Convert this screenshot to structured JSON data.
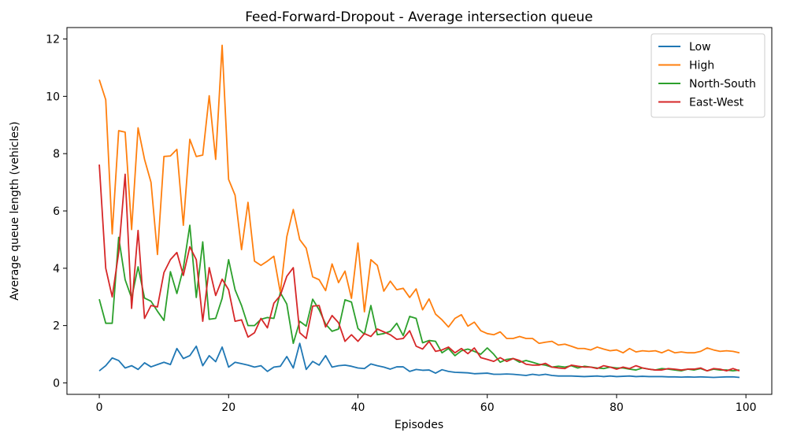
{
  "chart_data": {
    "type": "line",
    "title": "Feed-Forward-Dropout - Average intersection queue",
    "xlabel": "Episodes",
    "ylabel": "Average queue length (vehicles)",
    "xlim": [
      -5,
      104
    ],
    "ylim": [
      -0.4,
      12.4
    ],
    "xticks": [
      0,
      20,
      40,
      60,
      80,
      100
    ],
    "yticks": [
      0,
      2,
      4,
      6,
      8,
      10,
      12
    ],
    "grid": false,
    "legend_position": "top-right",
    "x": [
      0,
      1,
      2,
      3,
      4,
      5,
      6,
      7,
      8,
      9,
      10,
      11,
      12,
      13,
      14,
      15,
      16,
      17,
      18,
      19,
      20,
      21,
      22,
      23,
      24,
      25,
      26,
      27,
      28,
      29,
      30,
      31,
      32,
      33,
      34,
      35,
      36,
      37,
      38,
      39,
      40,
      41,
      42,
      43,
      44,
      45,
      46,
      47,
      48,
      49,
      50,
      51,
      52,
      53,
      54,
      55,
      56,
      57,
      58,
      59,
      60,
      61,
      62,
      63,
      64,
      65,
      66,
      67,
      68,
      69,
      70,
      71,
      72,
      73,
      74,
      75,
      76,
      77,
      78,
      79,
      80,
      81,
      82,
      83,
      84,
      85,
      86,
      87,
      88,
      89,
      90,
      91,
      92,
      93,
      94,
      95,
      96,
      97,
      98,
      99
    ],
    "series": [
      {
        "name": "Low",
        "color": "#1f77b4",
        "values": [
          0.42,
          0.6,
          0.87,
          0.78,
          0.52,
          0.6,
          0.47,
          0.7,
          0.56,
          0.64,
          0.72,
          0.64,
          1.2,
          0.85,
          0.95,
          1.28,
          0.6,
          0.95,
          0.74,
          1.25,
          0.55,
          0.72,
          0.67,
          0.62,
          0.55,
          0.6,
          0.4,
          0.55,
          0.58,
          0.92,
          0.52,
          1.38,
          0.47,
          0.75,
          0.62,
          0.95,
          0.55,
          0.6,
          0.62,
          0.58,
          0.52,
          0.5,
          0.66,
          0.6,
          0.55,
          0.48,
          0.56,
          0.56,
          0.4,
          0.47,
          0.44,
          0.45,
          0.34,
          0.46,
          0.4,
          0.37,
          0.36,
          0.35,
          0.32,
          0.33,
          0.34,
          0.3,
          0.3,
          0.31,
          0.3,
          0.28,
          0.26,
          0.3,
          0.27,
          0.3,
          0.26,
          0.24,
          0.24,
          0.24,
          0.23,
          0.22,
          0.23,
          0.24,
          0.22,
          0.24,
          0.22,
          0.23,
          0.24,
          0.22,
          0.23,
          0.22,
          0.22,
          0.22,
          0.21,
          0.21,
          0.2,
          0.21,
          0.2,
          0.21,
          0.2,
          0.19,
          0.2,
          0.21,
          0.21,
          0.19
        ]
      },
      {
        "name": "High",
        "color": "#ff7f0e",
        "values": [
          10.58,
          9.88,
          5.2,
          8.8,
          8.75,
          5.35,
          8.9,
          7.8,
          7.0,
          4.48,
          7.9,
          7.92,
          8.15,
          5.5,
          8.5,
          7.9,
          7.95,
          10.02,
          7.8,
          11.78,
          7.1,
          6.55,
          4.65,
          6.3,
          4.25,
          4.1,
          4.25,
          4.42,
          3.15,
          5.1,
          6.05,
          5.0,
          4.7,
          3.7,
          3.6,
          3.22,
          4.15,
          3.5,
          3.9,
          2.95,
          4.88,
          2.48,
          4.3,
          4.1,
          3.2,
          3.55,
          3.25,
          3.3,
          2.98,
          3.28,
          2.55,
          2.93,
          2.4,
          2.2,
          1.95,
          2.25,
          2.38,
          1.98,
          2.12,
          1.82,
          1.72,
          1.68,
          1.78,
          1.55,
          1.55,
          1.62,
          1.55,
          1.55,
          1.38,
          1.42,
          1.45,
          1.32,
          1.35,
          1.28,
          1.2,
          1.2,
          1.15,
          1.25,
          1.18,
          1.12,
          1.15,
          1.05,
          1.2,
          1.08,
          1.12,
          1.1,
          1.12,
          1.05,
          1.15,
          1.05,
          1.08,
          1.05,
          1.05,
          1.1,
          1.22,
          1.15,
          1.1,
          1.12,
          1.1,
          1.05
        ]
      },
      {
        "name": "North-South",
        "color": "#2ca02c",
        "values": [
          2.92,
          2.08,
          2.08,
          5.08,
          3.6,
          2.96,
          4.05,
          2.96,
          2.85,
          2.5,
          2.18,
          3.88,
          3.12,
          4.0,
          5.5,
          2.98,
          4.92,
          2.22,
          2.25,
          2.95,
          4.3,
          3.25,
          2.7,
          2.0,
          2.0,
          2.22,
          2.28,
          2.25,
          3.15,
          2.75,
          1.38,
          2.15,
          1.98,
          2.92,
          2.55,
          2.05,
          1.8,
          1.88,
          2.9,
          2.82,
          1.9,
          1.7,
          2.7,
          1.68,
          1.72,
          1.8,
          2.08,
          1.65,
          2.32,
          2.25,
          1.4,
          1.48,
          1.45,
          1.05,
          1.2,
          0.95,
          1.12,
          1.18,
          1.1,
          1.0,
          1.22,
          1.0,
          0.72,
          0.82,
          0.85,
          0.72,
          0.78,
          0.72,
          0.65,
          0.62,
          0.55,
          0.58,
          0.55,
          0.6,
          0.52,
          0.58,
          0.55,
          0.52,
          0.5,
          0.55,
          0.52,
          0.52,
          0.48,
          0.45,
          0.52,
          0.48,
          0.45,
          0.5,
          0.48,
          0.45,
          0.42,
          0.48,
          0.45,
          0.5,
          0.42,
          0.48,
          0.45,
          0.45,
          0.42,
          0.45
        ]
      },
      {
        "name": "East-West",
        "color": "#d62728",
        "values": [
          7.62,
          4.0,
          3.0,
          4.55,
          7.28,
          2.6,
          5.32,
          2.25,
          2.7,
          2.65,
          3.85,
          4.3,
          4.55,
          3.75,
          4.75,
          4.3,
          2.15,
          4.02,
          3.05,
          3.62,
          3.25,
          2.15,
          2.2,
          1.6,
          1.75,
          2.25,
          1.92,
          2.78,
          3.05,
          3.72,
          4.02,
          1.75,
          1.55,
          2.68,
          2.7,
          1.95,
          2.35,
          2.1,
          1.45,
          1.68,
          1.45,
          1.72,
          1.62,
          1.88,
          1.78,
          1.68,
          1.52,
          1.55,
          1.82,
          1.28,
          1.18,
          1.45,
          1.1,
          1.15,
          1.25,
          1.05,
          1.2,
          1.02,
          1.22,
          0.88,
          0.82,
          0.75,
          0.88,
          0.75,
          0.85,
          0.78,
          0.65,
          0.62,
          0.62,
          0.68,
          0.55,
          0.52,
          0.5,
          0.62,
          0.58,
          0.55,
          0.55,
          0.5,
          0.6,
          0.55,
          0.48,
          0.55,
          0.5,
          0.6,
          0.52,
          0.48,
          0.45,
          0.45,
          0.5,
          0.48,
          0.45,
          0.48,
          0.48,
          0.52,
          0.42,
          0.5,
          0.48,
          0.42,
          0.5,
          0.42
        ]
      }
    ]
  }
}
